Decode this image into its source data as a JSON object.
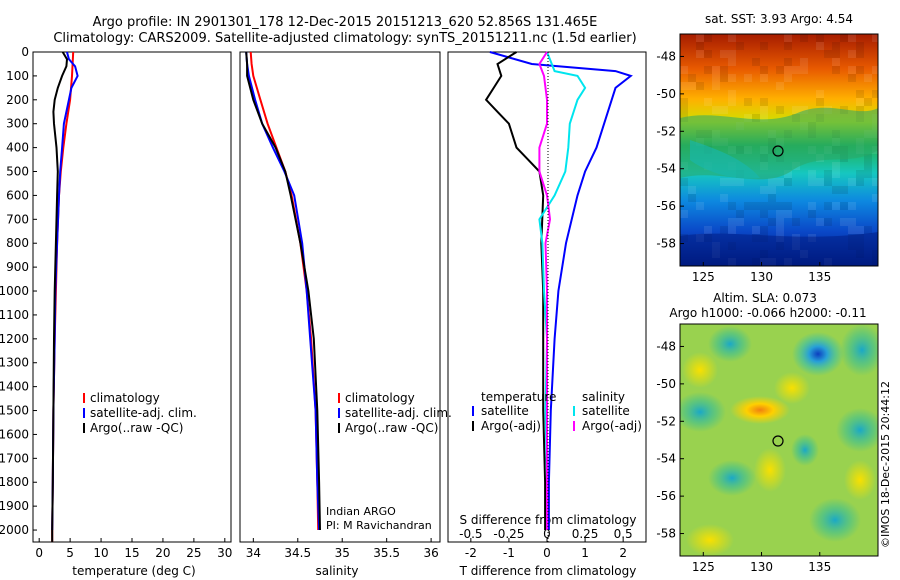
{
  "header": {
    "line1": "Argo profile: IN 2901301_178 12-Dec-2015 20151213_620 52.856S 131.465E",
    "line2": "Climatology: CARS2009. Satellite-adjusted climatology: synTS_20151211.nc (1.5d earlier)"
  },
  "depth_ticks": [
    0,
    100,
    200,
    300,
    400,
    500,
    600,
    700,
    800,
    900,
    1000,
    1100,
    1200,
    1300,
    1400,
    1500,
    1600,
    1700,
    1800,
    1900,
    2000
  ],
  "panels": {
    "temperature": {
      "xlabel": "temperature (deg C)",
      "xticks": [
        0,
        5,
        10,
        15,
        20,
        25,
        30
      ],
      "legend": [
        "climatology",
        "satellite-adj. clim.",
        "Argo(..raw -QC)"
      ]
    },
    "salinity": {
      "xlabel": "salinity",
      "xticks": [
        "34",
        "34.5",
        "35",
        "35.5",
        "36"
      ],
      "legend": [
        "climatology",
        "satellite-adj. clim.",
        "Argo(..raw -QC)"
      ],
      "note1": "Indian ARGO",
      "note2": "PI: M Ravichandran"
    },
    "difference": {
      "xlabel_bottom": "T difference from climatology",
      "xlabel_top": "S difference from climatology",
      "xticks_bottom": [
        "-2",
        "-1",
        "0",
        "1",
        "2"
      ],
      "xticks_top": [
        "-0.5",
        "-0.25",
        "0",
        "0.25",
        "0.5"
      ],
      "legend_t_title": "temperature",
      "legend_s_title": "salinity",
      "legend_t": [
        "satellite",
        "Argo(-adj)"
      ],
      "legend_s": [
        "satellite",
        "Argo(-adj)"
      ]
    }
  },
  "maps": {
    "sst": {
      "title": "sat. SST: 3.93 Argo: 4.54",
      "yticks": [
        "-48",
        "-50",
        "-52",
        "-54",
        "-56",
        "-58"
      ],
      "xticks": [
        "125",
        "130",
        "135"
      ]
    },
    "sla": {
      "title1": "Altim. SLA: 0.073",
      "title2": "Argo h1000: -0.066 h2000: -0.11",
      "yticks": [
        "-48",
        "-50",
        "-52",
        "-54",
        "-56",
        "-58"
      ],
      "xticks": [
        "125",
        "130",
        "135"
      ]
    }
  },
  "stamp": "©IMOS 18-Dec-2015 20:44:12",
  "colors": {
    "climatology": "#ff0000",
    "satellite": "#0000ff",
    "argo": "#000000",
    "salinity_satellite": "#00e5ee",
    "salinity_argo": "#ff00ff"
  },
  "chart_data": [
    {
      "type": "line",
      "title": "",
      "xlabel": "temperature (deg C)",
      "ylabel": "",
      "xlim": [
        -1,
        31
      ],
      "ylim": [
        2050,
        0
      ],
      "series": [
        {
          "name": "climatology",
          "y": [
            0,
            50,
            100,
            200,
            300,
            400,
            500,
            600,
            800,
            1000,
            1200,
            1500,
            1800,
            2000,
            2050
          ],
          "x": [
            5.5,
            5.4,
            5.3,
            5.0,
            4.4,
            3.9,
            3.5,
            3.2,
            2.9,
            2.7,
            2.5,
            2.3,
            2.2,
            2.1,
            2.1
          ]
        },
        {
          "name": "satellite-adj. clim.",
          "y": [
            0,
            30,
            60,
            100,
            150,
            200,
            300,
            400,
            500,
            600,
            800,
            1000,
            1200,
            1500,
            1800,
            2000
          ],
          "x": [
            4.5,
            4.8,
            5.8,
            6.2,
            5.2,
            4.8,
            4.0,
            3.7,
            3.4,
            3.2,
            2.9,
            2.6,
            2.5,
            2.3,
            2.2,
            2.1
          ]
        },
        {
          "name": "Argo(..raw -QC)",
          "y": [
            0,
            30,
            60,
            100,
            150,
            200,
            250,
            300,
            400,
            500,
            600,
            800,
            1000,
            1200,
            1500,
            1800,
            2000,
            2050
          ],
          "x": [
            3.8,
            4.5,
            4.4,
            3.7,
            3.0,
            2.5,
            2.3,
            2.4,
            2.8,
            3.0,
            2.9,
            2.7,
            2.5,
            2.4,
            2.3,
            2.2,
            2.1,
            2.1
          ]
        }
      ]
    },
    {
      "type": "line",
      "title": "",
      "xlabel": "salinity",
      "ylabel": "",
      "xlim": [
        33.85,
        36.1
      ],
      "ylim": [
        2050,
        0
      ],
      "series": [
        {
          "name": "climatology",
          "y": [
            0,
            50,
            100,
            200,
            300,
            400,
            500,
            600,
            800,
            1000,
            1200,
            1500,
            1800,
            2000
          ],
          "x": [
            33.97,
            33.98,
            34.0,
            34.08,
            34.16,
            34.26,
            34.36,
            34.43,
            34.53,
            34.6,
            34.65,
            34.7,
            34.72,
            34.73
          ]
        },
        {
          "name": "satellite-adj. clim.",
          "y": [
            0,
            50,
            100,
            200,
            300,
            400,
            500,
            600,
            800,
            1000,
            1200,
            1500,
            1800,
            2000
          ],
          "x": [
            33.92,
            33.93,
            33.95,
            34.02,
            34.1,
            34.22,
            34.35,
            34.46,
            34.55,
            34.6,
            34.64,
            34.7,
            34.72,
            34.74
          ]
        },
        {
          "name": "Argo(..raw -QC)",
          "y": [
            0,
            50,
            100,
            200,
            300,
            400,
            500,
            600,
            800,
            1000,
            1200,
            1500,
            1800,
            2000
          ],
          "x": [
            33.92,
            33.93,
            33.93,
            34.0,
            34.1,
            34.25,
            34.36,
            34.42,
            34.53,
            34.62,
            34.68,
            34.72,
            34.74,
            34.75
          ]
        }
      ]
    },
    {
      "type": "line",
      "title": "",
      "xlabel": "T difference from climatology",
      "ylabel": "",
      "xlim": [
        -2.6,
        2.6
      ],
      "ylim": [
        2050,
        0
      ],
      "series": [
        {
          "name": "satellite",
          "y": [
            0,
            50,
            80,
            100,
            150,
            200,
            300,
            400,
            500,
            600,
            800,
            1000,
            1200,
            1500,
            1800,
            2000
          ],
          "x": [
            -1.5,
            -0.4,
            1.8,
            2.2,
            1.8,
            1.7,
            1.5,
            1.3,
            1.0,
            0.8,
            0.5,
            0.3,
            0.2,
            0.1,
            0.05,
            0.05
          ]
        },
        {
          "name": "Argo(-adj)",
          "y": [
            0,
            50,
            100,
            150,
            200,
            250,
            300,
            400,
            450,
            500,
            600,
            800,
            1000,
            1200,
            1500,
            1800,
            2000
          ],
          "x": [
            -0.8,
            -1.3,
            -1.2,
            -1.4,
            -1.6,
            -1.3,
            -1.0,
            -0.8,
            -0.5,
            -0.2,
            -0.1,
            -0.15,
            -0.1,
            -0.1,
            -0.1,
            -0.05,
            -0.05
          ]
        }
      ]
    },
    {
      "type": "line",
      "title": "",
      "xlabel": "S difference from climatology",
      "ylabel": "",
      "xlim": [
        -0.65,
        0.65
      ],
      "ylim": [
        2050,
        0
      ],
      "series": [
        {
          "name": "satellite",
          "y": [
            0,
            80,
            100,
            150,
            200,
            300,
            400,
            500,
            600,
            700,
            800,
            1000,
            1200,
            1500,
            1800,
            2000
          ],
          "x": [
            0.0,
            0.05,
            0.2,
            0.25,
            0.2,
            0.15,
            0.14,
            0.12,
            0.05,
            -0.05,
            -0.03,
            -0.02,
            0.0,
            -0.01,
            0.0,
            0.0
          ]
        },
        {
          "name": "Argo(-adj)",
          "y": [
            0,
            50,
            100,
            200,
            300,
            400,
            500,
            600,
            700,
            800,
            1000,
            1200,
            1500,
            1800,
            2000
          ],
          "x": [
            0.0,
            -0.05,
            -0.02,
            0.0,
            0.0,
            -0.05,
            -0.05,
            0.0,
            0.02,
            -0.01,
            0.0,
            0.0,
            0.0,
            0.0,
            0.0
          ]
        }
      ]
    },
    {
      "type": "heatmap",
      "title": "sat. SST: 3.93 Argo: 4.54",
      "xlabel": "",
      "ylabel": "",
      "xlim": [
        123,
        140
      ],
      "ylim": [
        -59.2,
        -46.8
      ],
      "marker": {
        "lon": 131.465,
        "lat": -52.856
      },
      "colormap": "jet"
    },
    {
      "type": "heatmap",
      "title": "Altim. SLA: 0.073",
      "xlabel": "",
      "ylabel": "",
      "xlim": [
        123,
        140
      ],
      "ylim": [
        -59.2,
        -46.8
      ],
      "marker": {
        "lon": 131.465,
        "lat": -52.856
      },
      "colormap": "jet"
    }
  ]
}
